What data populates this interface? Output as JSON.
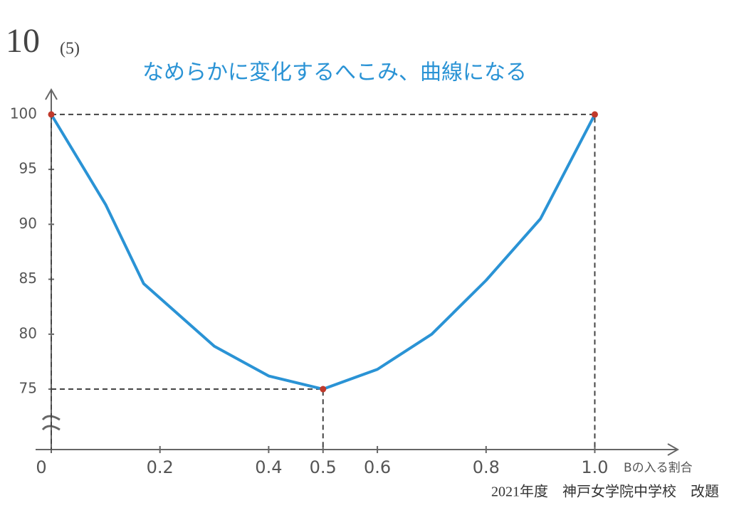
{
  "chart_data": {
    "type": "line",
    "problem_number": "10",
    "sub_number": "(5)",
    "annotation": "なめらかに変化するへこみ、曲線になる",
    "x_label": "Bの入る割合",
    "footer": "2021年度　神戸女学院中学校　改題",
    "x": [
      0,
      0.1,
      0.17,
      0.3,
      0.4,
      0.5,
      0.6,
      0.7,
      0.8,
      0.9,
      1
    ],
    "values": [
      100,
      91.8,
      84.6,
      78.9,
      76.2,
      75,
      76.8,
      80,
      84.9,
      90.5,
      100
    ],
    "color": "#2a93d5",
    "highlight": {
      "x": [
        0,
        0.5,
        1
      ],
      "values": [
        100,
        75,
        100
      ],
      "color": "#c0392b"
    },
    "xlim": [
      0,
      1.15
    ],
    "ylim": [
      69.5,
      102
    ],
    "xticks": [
      0,
      0.2,
      0.4,
      0.5,
      0.6,
      0.8,
      {
        "value": 1,
        "label": "1.0"
      }
    ],
    "yticks": [
      75,
      80,
      85,
      90,
      95,
      100
    ]
  }
}
